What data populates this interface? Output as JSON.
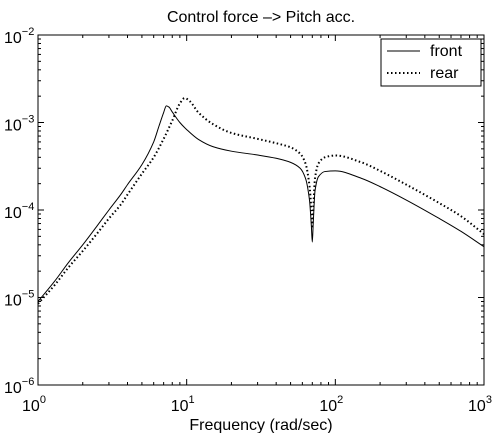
{
  "chart_data": {
    "type": "line",
    "title": "Control force –> Pitch acc.",
    "xlabel": "Frequency (rad/sec)",
    "ylabel": "",
    "xscale": "log",
    "yscale": "log",
    "xlim": [
      1,
      1000
    ],
    "ylim": [
      1e-06,
      0.01
    ],
    "grid": false,
    "legend_position": "top-right",
    "x_ticks": [
      {
        "value": 1,
        "base": "10",
        "exp": "0"
      },
      {
        "value": 10,
        "base": "10",
        "exp": "1"
      },
      {
        "value": 100,
        "base": "10",
        "exp": "2"
      },
      {
        "value": 1000,
        "base": "10",
        "exp": "3"
      }
    ],
    "y_ticks": [
      {
        "value": 1e-06,
        "base": "10",
        "exp": "−6"
      },
      {
        "value": 1e-05,
        "base": "10",
        "exp": "−5"
      },
      {
        "value": 0.0001,
        "base": "10",
        "exp": "−4"
      },
      {
        "value": 0.001,
        "base": "10",
        "exp": "−3"
      },
      {
        "value": 0.01,
        "base": "10",
        "exp": "−2"
      }
    ],
    "series": [
      {
        "name": "front",
        "style": "solid",
        "color": "#000000",
        "points": [
          [
            1.0,
            9e-06
          ],
          [
            1.3,
            1.55e-05
          ],
          [
            1.6,
            2.5e-05
          ],
          [
            2.0,
            4e-05
          ],
          [
            2.5,
            6.6e-05
          ],
          [
            3.0,
            0.0001
          ],
          [
            3.6,
            0.00015
          ],
          [
            4.0,
            0.000195
          ],
          [
            5.0,
            0.00033
          ],
          [
            6.0,
            0.0006
          ],
          [
            6.5,
            0.0009
          ],
          [
            7.0,
            0.0013
          ],
          [
            7.3,
            0.00155
          ],
          [
            7.6,
            0.0015
          ],
          [
            8.0,
            0.00132
          ],
          [
            9.0,
            0.001
          ],
          [
            10.0,
            0.00083
          ],
          [
            12.0,
            0.00064
          ],
          [
            15.0,
            0.00053
          ],
          [
            20.0,
            0.00047
          ],
          [
            30.0,
            0.000425
          ],
          [
            40.0,
            0.00039
          ],
          [
            50.0,
            0.00035
          ],
          [
            58.0,
            0.0003
          ],
          [
            63.0,
            0.00023
          ],
          [
            67.0,
            0.00013
          ],
          [
            69.0,
            6.5e-05
          ],
          [
            70.0,
            4.3e-05
          ],
          [
            71.0,
            7e-05
          ],
          [
            73.0,
            0.000165
          ],
          [
            77.0,
            0.00024
          ],
          [
            85.0,
            0.000275
          ],
          [
            100.0,
            0.00028
          ],
          [
            150.0,
            0.00023
          ],
          [
            200.0,
            0.000185
          ],
          [
            300.0,
            0.00013
          ],
          [
            500.0,
            8e-05
          ],
          [
            700.0,
            5.7e-05
          ],
          [
            1000.0,
            3.8e-05
          ]
        ]
      },
      {
        "name": "rear",
        "style": "dotted",
        "color": "#000000",
        "points": [
          [
            1.0,
            8.5e-06
          ],
          [
            1.3,
            1.4e-05
          ],
          [
            1.6,
            2.2e-05
          ],
          [
            2.0,
            3.4e-05
          ],
          [
            2.5,
            5.4e-05
          ],
          [
            3.0,
            8e-05
          ],
          [
            3.6,
            0.000115
          ],
          [
            4.0,
            0.00015
          ],
          [
            5.0,
            0.00026
          ],
          [
            6.0,
            0.0004
          ],
          [
            7.0,
            0.00065
          ],
          [
            8.0,
            0.00105
          ],
          [
            9.0,
            0.00165
          ],
          [
            9.7,
            0.0019
          ],
          [
            10.5,
            0.00175
          ],
          [
            12.0,
            0.0013
          ],
          [
            15.0,
            0.00096
          ],
          [
            20.0,
            0.00076
          ],
          [
            30.0,
            0.00065
          ],
          [
            40.0,
            0.00058
          ],
          [
            50.0,
            0.00052
          ],
          [
            58.0,
            0.00044
          ],
          [
            63.0,
            0.00034
          ],
          [
            67.0,
            0.00019
          ],
          [
            69.0,
            0.0001
          ],
          [
            70.0,
            6.5e-05
          ],
          [
            71.0,
            0.0001
          ],
          [
            73.0,
            0.00023
          ],
          [
            77.0,
            0.00034
          ],
          [
            85.0,
            0.0004
          ],
          [
            100.0,
            0.00042
          ],
          [
            150.0,
            0.00035
          ],
          [
            200.0,
            0.00028
          ],
          [
            300.0,
            0.000195
          ],
          [
            500.0,
            0.00012
          ],
          [
            700.0,
            8.5e-05
          ],
          [
            1000.0,
            5.3e-05
          ]
        ]
      }
    ]
  }
}
